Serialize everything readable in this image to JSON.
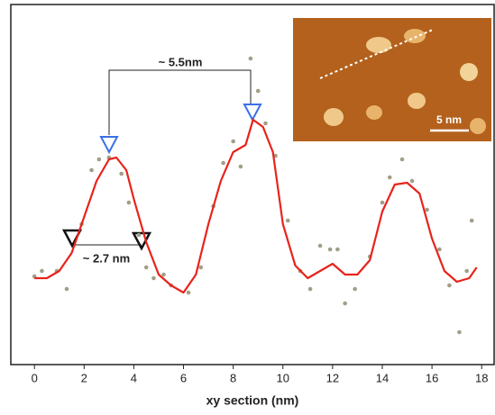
{
  "chart_data": {
    "type": "line",
    "x": [
      0,
      0.5,
      1,
      1.5,
      2,
      2.5,
      3,
      3.3,
      3.7,
      4,
      4.5,
      5,
      5.5,
      6,
      6.5,
      7,
      7.5,
      8,
      8.5,
      8.8,
      9.2,
      9.6,
      10,
      10.5,
      11,
      11.5,
      12,
      12.5,
      13,
      13.5,
      14,
      14.5,
      15,
      15.5,
      16,
      16.5,
      17,
      17.5,
      17.8
    ],
    "values": [
      24,
      24,
      26,
      31,
      41,
      51,
      57,
      57.5,
      54,
      46,
      34,
      25,
      22,
      20,
      25,
      39,
      51,
      59,
      61,
      68,
      66,
      59,
      39,
      27.5,
      24,
      26,
      28,
      25,
      25,
      29,
      42.5,
      50,
      50.5,
      47.5,
      35,
      26,
      23,
      24,
      27
    ],
    "color": "#e8231b",
    "points": {
      "x": [
        0,
        0.3,
        0.9,
        1.3,
        1.9,
        2.3,
        2.6,
        3.0,
        3.5,
        3.8,
        4.2,
        4.5,
        4.8,
        5.2,
        5.5,
        6.2,
        6.7,
        7.2,
        7.6,
        8.0,
        8.3,
        8.7,
        9.0,
        9.3,
        9.7,
        10.2,
        10.7,
        11.1,
        11.5,
        11.9,
        12.2,
        12.5,
        12.9,
        13.5,
        14.0,
        14.3,
        14.8,
        15.2,
        15.8,
        16.3,
        16.7,
        17.1,
        17.4,
        17.6
      ],
      "values": [
        24.5,
        26,
        26,
        21,
        39,
        54,
        57,
        57.5,
        53,
        45,
        36,
        27,
        24,
        25,
        22,
        20,
        27,
        44,
        56,
        62,
        55,
        85,
        76,
        67,
        58,
        40,
        26,
        21,
        33,
        32,
        32,
        17,
        21,
        30,
        45,
        52,
        57,
        51,
        43,
        32,
        22,
        9,
        26,
        40
      ],
      "color": "#a39e86"
    },
    "xlim": [
      -0.95,
      18.5
    ],
    "xticks": [
      0,
      2,
      4,
      6,
      8,
      10,
      12,
      14,
      16,
      18
    ],
    "ylim": [
      0,
      100
    ],
    "xlabel": "xy section (nm)",
    "annotations": [
      "~ 5.5nm",
      "~ 2.7 nm"
    ],
    "inset_scale": "5 nm"
  }
}
